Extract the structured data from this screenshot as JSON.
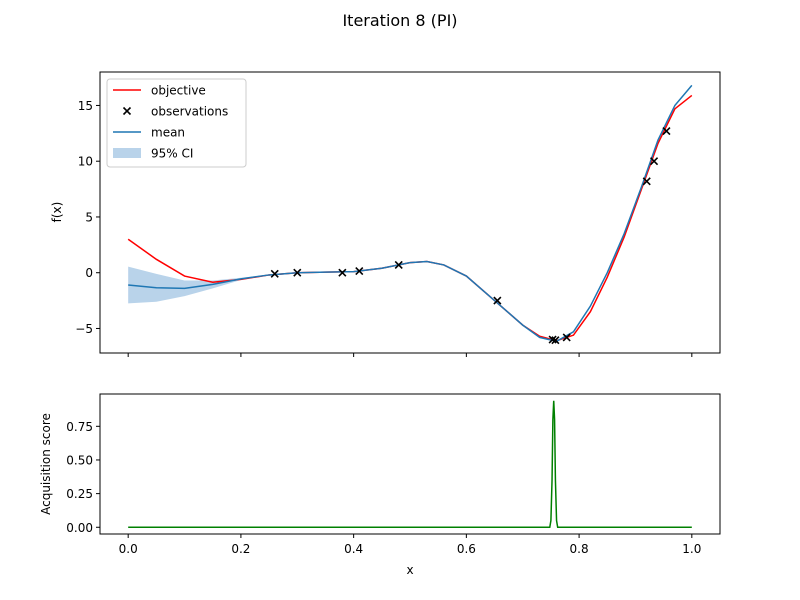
{
  "figure": {
    "title": "Iteration 8 (PI)"
  },
  "colors": {
    "objective": "#ff0000",
    "mean": "#1f77b4",
    "ci": "#b9d3ea",
    "observations": "#000000",
    "acquisition": "#008000"
  },
  "legend": {
    "placement": "upper-left",
    "entries": [
      {
        "key": "objective",
        "label": "objective"
      },
      {
        "key": "observations",
        "label": "observations"
      },
      {
        "key": "mean",
        "label": "mean"
      },
      {
        "key": "ci",
        "label": "95% CI"
      }
    ]
  },
  "chart_data": [
    {
      "type": "line",
      "ylabel": "f(x)",
      "xlim": [
        -0.05,
        1.05
      ],
      "ylim": [
        -7.2,
        18
      ],
      "xticks": [
        0.0,
        0.2,
        0.4,
        0.6,
        0.8,
        1.0
      ],
      "yticks": [
        -5,
        0,
        5,
        10,
        15
      ],
      "ytick_labels": [
        "−5",
        "0",
        "5",
        "10",
        "15"
      ],
      "objective": {
        "x": [
          0.0,
          0.05,
          0.1,
          0.15,
          0.2,
          0.25,
          0.3,
          0.35,
          0.4,
          0.45,
          0.5,
          0.53,
          0.56,
          0.6,
          0.65,
          0.7,
          0.73,
          0.76,
          0.79,
          0.82,
          0.85,
          0.88,
          0.91,
          0.94,
          0.97,
          1.0
        ],
        "y": [
          3.0,
          1.2,
          -0.3,
          -0.85,
          -0.6,
          -0.2,
          0.0,
          0.05,
          0.1,
          0.4,
          0.9,
          1.0,
          0.7,
          -0.3,
          -2.5,
          -4.7,
          -5.7,
          -6.1,
          -5.6,
          -3.5,
          -0.4,
          3.2,
          7.4,
          11.6,
          14.7,
          15.9
        ]
      },
      "mean": {
        "x": [
          0.0,
          0.05,
          0.1,
          0.15,
          0.2,
          0.25,
          0.3,
          0.35,
          0.4,
          0.45,
          0.5,
          0.53,
          0.56,
          0.6,
          0.65,
          0.7,
          0.73,
          0.76,
          0.79,
          0.82,
          0.85,
          0.88,
          0.91,
          0.94,
          0.97,
          1.0
        ],
        "y": [
          -1.1,
          -1.35,
          -1.4,
          -1.05,
          -0.55,
          -0.2,
          0.0,
          0.05,
          0.1,
          0.4,
          0.9,
          1.0,
          0.7,
          -0.3,
          -2.5,
          -4.7,
          -5.8,
          -6.15,
          -5.3,
          -3.0,
          0.0,
          3.5,
          7.6,
          11.9,
          15.0,
          16.8
        ]
      },
      "ci": {
        "x": [
          0.0,
          0.05,
          0.1,
          0.15,
          0.2,
          0.25,
          0.3,
          0.35,
          0.4,
          0.45,
          0.5,
          0.53,
          0.56,
          0.6,
          0.65,
          0.7,
          0.73,
          0.76,
          0.79,
          0.82,
          0.85,
          0.88,
          0.91,
          0.94,
          0.97,
          1.0
        ],
        "lower": [
          -2.75,
          -2.6,
          -2.1,
          -1.4,
          -0.65,
          -0.22,
          -0.02,
          0.03,
          0.08,
          0.38,
          0.88,
          0.98,
          0.68,
          -0.32,
          -2.52,
          -4.75,
          -5.85,
          -6.2,
          -5.35,
          -3.05,
          -0.05,
          3.45,
          7.55,
          11.85,
          14.95,
          16.75
        ],
        "upper": [
          0.55,
          -0.1,
          -0.7,
          -0.7,
          -0.45,
          -0.18,
          0.02,
          0.07,
          0.12,
          0.42,
          0.92,
          1.02,
          0.72,
          -0.28,
          -2.48,
          -4.65,
          -5.75,
          -6.1,
          -5.25,
          -2.95,
          0.05,
          3.55,
          7.65,
          11.95,
          15.05,
          16.85
        ]
      },
      "observations": {
        "x": [
          0.26,
          0.3,
          0.38,
          0.41,
          0.48,
          0.655,
          0.753,
          0.758,
          0.778,
          0.92,
          0.933,
          0.955
        ],
        "y": [
          -0.1,
          0.0,
          0.0,
          0.15,
          0.7,
          -2.5,
          -6.0,
          -6.05,
          -5.8,
          8.2,
          10.0,
          12.7
        ]
      }
    },
    {
      "type": "line",
      "xlabel": "x",
      "ylabel": "Acquisition score",
      "xlim": [
        -0.05,
        1.05
      ],
      "ylim": [
        -0.05,
        0.99
      ],
      "xticks": [
        0.0,
        0.2,
        0.4,
        0.6,
        0.8,
        1.0
      ],
      "xtick_labels": [
        "0.0",
        "0.2",
        "0.4",
        "0.6",
        "0.8",
        "1.0"
      ],
      "yticks": [
        0.0,
        0.25,
        0.5,
        0.75
      ],
      "ytick_labels": [
        "0.00",
        "0.25",
        "0.50",
        "0.75"
      ],
      "acquisition": {
        "x": [
          0.0,
          0.748,
          0.75,
          0.752,
          0.7535,
          0.755,
          0.7565,
          0.758,
          0.76,
          0.762,
          1.0
        ],
        "y": [
          0.0,
          0.0,
          0.05,
          0.35,
          0.8,
          0.94,
          0.8,
          0.35,
          0.05,
          0.0,
          0.0
        ]
      }
    }
  ]
}
